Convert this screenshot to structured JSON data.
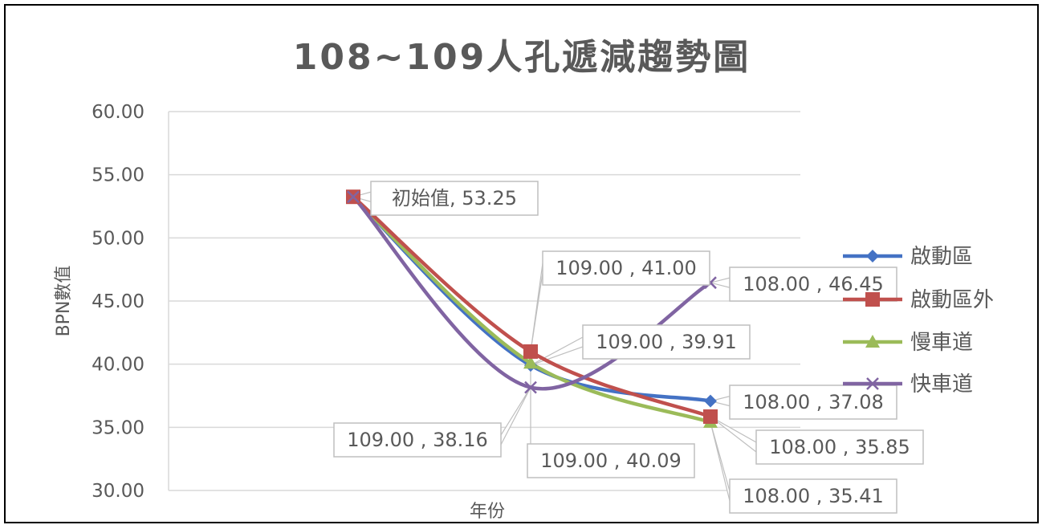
{
  "chart_data": {
    "type": "line",
    "title": "108~109人孔遞減趨勢圖",
    "xlabel": "年份",
    "ylabel": "BPN數值",
    "ylim": [
      30,
      60
    ],
    "y_ticks": [
      "30.00",
      "35.00",
      "40.00",
      "45.00",
      "50.00",
      "55.00",
      "60.00"
    ],
    "grid": true,
    "legend_position": "right",
    "series": [
      {
        "name": "啟動區",
        "color": "#4472C4",
        "marker": "diamond",
        "values": [
          53.25,
          39.91,
          37.08
        ]
      },
      {
        "name": "啟動區外",
        "color": "#C0504D",
        "marker": "square",
        "values": [
          53.25,
          41.0,
          35.85
        ]
      },
      {
        "name": "慢車道",
        "color": "#9BBB59",
        "marker": "triangle",
        "values": [
          53.25,
          40.09,
          35.41
        ]
      },
      {
        "name": "快車道",
        "color": "#8064A2",
        "marker": "x",
        "values": [
          53.25,
          38.16,
          46.45
        ]
      }
    ],
    "data_labels": [
      {
        "text": "初始值, 53.25"
      },
      {
        "text": "109.00 , 41.00"
      },
      {
        "text": "109.00 , 39.91"
      },
      {
        "text": "109.00 , 38.16"
      },
      {
        "text": "109.00 , 40.09"
      },
      {
        "text": "108.00 , 46.45"
      },
      {
        "text": "108.00 , 37.08"
      },
      {
        "text": "108.00 , 35.85"
      },
      {
        "text": "108.00 , 35.41"
      }
    ]
  }
}
